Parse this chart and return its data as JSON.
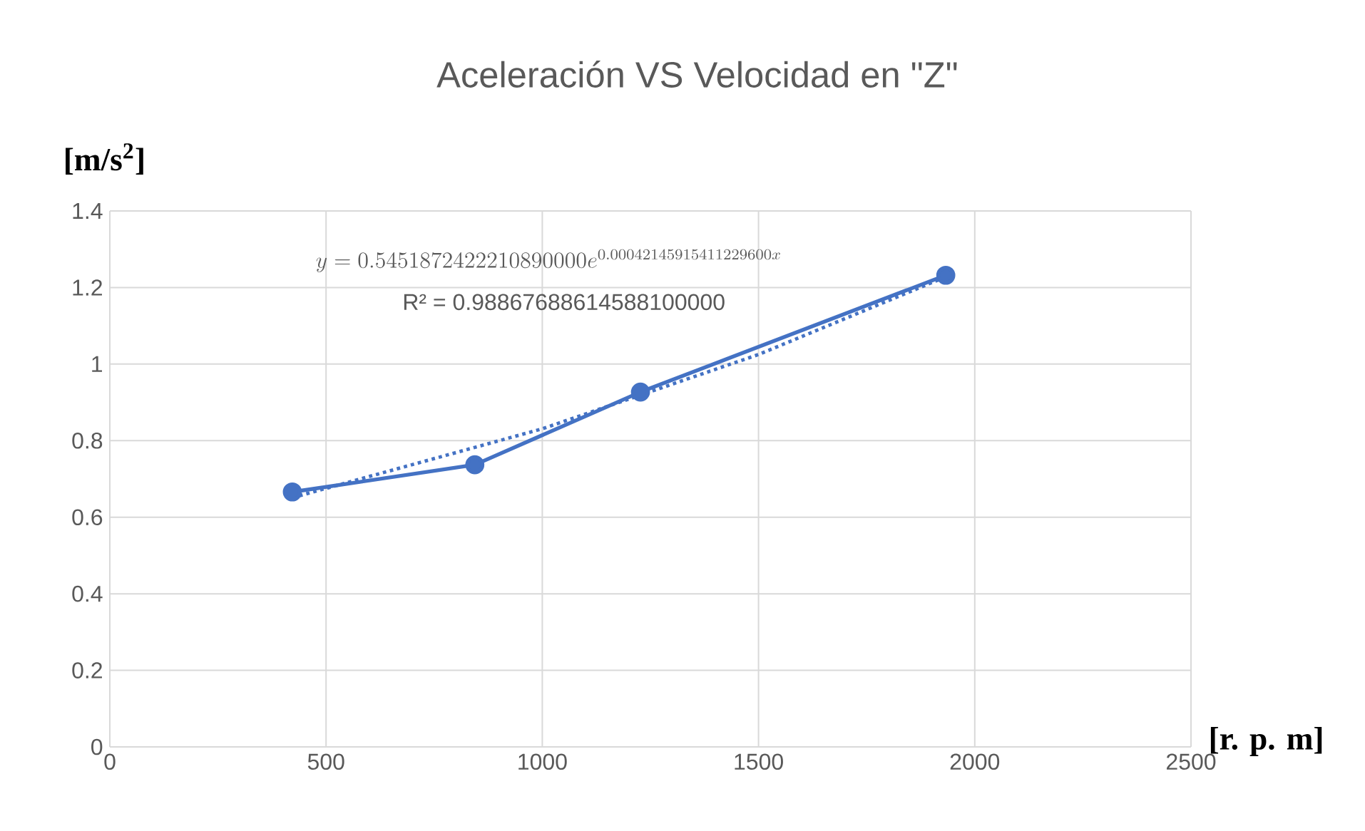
{
  "chart_data": {
    "type": "line",
    "title": "Aceleración VS Velocidad en \"Z\"",
    "xlabel": "[r. p. m]",
    "ylabel": "[m/s$^{2}$]",
    "series": [
      {
        "color": "#4472c4",
        "marker": "circle",
        "line_style": "solid",
        "x": [
          422,
          844,
          1227,
          1933
        ],
        "values": [
          0.666,
          0.737,
          0.927,
          1.232
        ]
      },
      {
        "type": "line",
        "color": "#4472c4",
        "marker": "none",
        "line_style": "dotted",
        "x": [
          422,
          1000,
          1500,
          1933
        ],
        "values": [
          0.651,
          0.831,
          1.025,
          1.228
        ]
      }
    ],
    "annotations": [
      "y = 0.5451872422210890000e^{0.00042145915411229600x}",
      "R² = 0.98867688614588100000"
    ],
    "xlim": [
      0,
      2500
    ],
    "xticks": [
      0,
      500,
      1000,
      1500,
      2000,
      2500
    ],
    "ylim": [
      0,
      1.4
    ],
    "yticks": [
      0,
      0.2,
      0.4,
      0.6,
      0.8,
      1,
      1.2,
      1.4
    ],
    "grid": true
  }
}
